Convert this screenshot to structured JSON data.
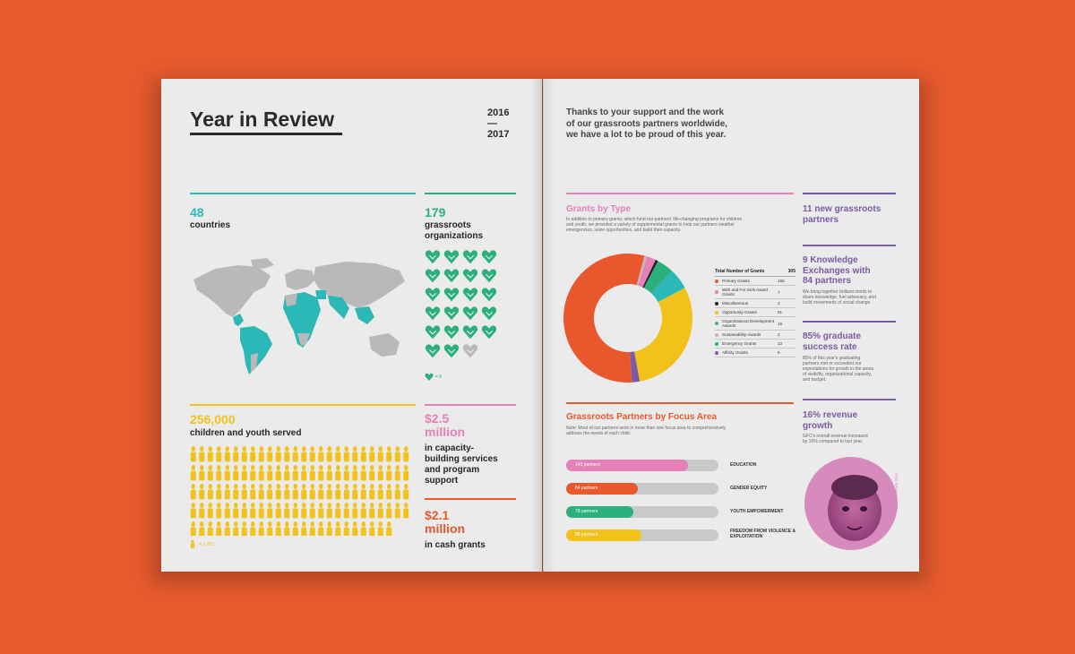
{
  "left": {
    "title": "Year in Review",
    "year_start": "2016",
    "year_dash": "—",
    "year_end": "2017",
    "countries": {
      "value": "48",
      "label": "countries"
    },
    "orgs": {
      "value": "179",
      "label_line1": "grassroots",
      "label_line2": "organizations",
      "legend": "= 8"
    },
    "children": {
      "value": "256,000",
      "label": "children and youth served",
      "legend": "= 2,000"
    },
    "capacity": {
      "value_line1": "$2.5",
      "value_line2": "million",
      "lines": [
        "in capacity-",
        "building services",
        "and program",
        "support"
      ]
    },
    "cash": {
      "value_line1": "$2.1",
      "value_line2": "million",
      "label": "in cash grants"
    }
  },
  "right": {
    "intro_lines": [
      "Thanks to your support and the work",
      "of our grassroots partners worldwide,",
      "we have a lot to be proud of this year."
    ],
    "grants": {
      "title": "Grants by Type",
      "desc_lines": [
        "In addition to primary grants, which fund our partners' life-changing programs for children",
        "and youth, we provided a variety of supplemental grants to help our partners weather",
        "emergencies, seize opportunities, and build their capacity."
      ],
      "total_label": "Total Number of Grants",
      "total_value": "305"
    },
    "focus": {
      "title": "Grassroots Partners by Focus Area",
      "note_lines": [
        "Note: Most of our partners work in more than one focus area to comprehensively",
        "address the needs of each child."
      ]
    },
    "stats": {
      "partners": {
        "line1": "11 new grassroots",
        "line2": "partners"
      },
      "knowledge": {
        "line1": "9 Knowledge",
        "line2": "Exchanges with",
        "line3": "84 partners",
        "desc": [
          "We bring together brilliant minds to",
          "share knowledge, fuel advocacy, and",
          "build movements of social change."
        ]
      },
      "graduate": {
        "line1": "85% graduate",
        "line2": "success rate",
        "desc": [
          "85% of this year's graduating",
          "partners met or exceeded our",
          "expectations for growth in the areas",
          "of visibility, organizational capacity,",
          "and budget."
        ]
      },
      "revenue": {
        "line1": "16% revenue",
        "line2": "growth",
        "desc": [
          "GFC's overall revenue increased",
          "by 16% compared to last year."
        ]
      }
    },
    "photo_credit": "Ph: Kevin Oloo"
  },
  "colors": {
    "teal": "#2cb8b6",
    "yellow": "#f2c21b",
    "pink": "#e77fb8",
    "orange": "#e8582c",
    "purple": "#7b5aa6",
    "green": "#2bb07d",
    "black": "#222222",
    "gray": "#b9b9b9",
    "dark_gray": "#444444"
  },
  "chart_data": [
    {
      "type": "pie",
      "title": "Grants by Type",
      "total": 305,
      "slices": [
        {
          "label": "Primary Grants",
          "value": 168,
          "color": "#e8582c"
        },
        {
          "label": "With and For Girls Award Grants",
          "value": 7,
          "color": "#e77fb8"
        },
        {
          "label": "Miscellaneous",
          "value": 2,
          "color": "#222222"
        },
        {
          "label": "Opportunity Grants",
          "value": 91,
          "color": "#f2c21b"
        },
        {
          "label": "Organizational Development Awards",
          "value": 16,
          "color": "#2cb8b6"
        },
        {
          "label": "Sustainability Awards",
          "value": 2,
          "color": "#b9b9b9"
        },
        {
          "label": "Emergency Grants",
          "value": 13,
          "color": "#2bb07d"
        },
        {
          "label": "Affinity Grants",
          "value": 6,
          "color": "#7b5aa6"
        }
      ]
    },
    {
      "type": "bar",
      "title": "Grassroots Partners by Focus Area",
      "orientation": "horizontal",
      "max": 179,
      "categories": [
        "EDUCATION",
        "GENDER EQUITY",
        "YOUTH EMPOWERMENT",
        "FREEDOM FROM VIOLENCE & EXPLOITATION"
      ],
      "values": [
        143,
        84,
        79,
        88
      ],
      "bar_labels": [
        "143 partners",
        "84 partners",
        "79 partners",
        "88 partners"
      ],
      "colors": [
        "#e77fb8",
        "#e8582c",
        "#2bb07d",
        "#f2c21b"
      ]
    }
  ]
}
